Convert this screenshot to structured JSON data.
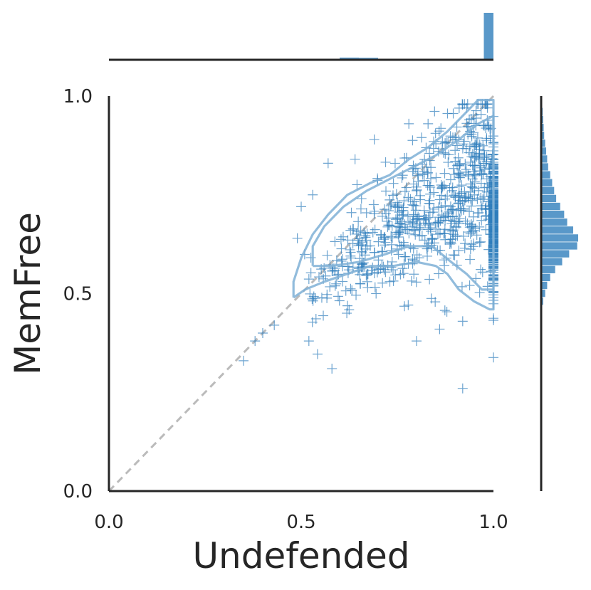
{
  "chart_data": {
    "type": "scatter",
    "title": "",
    "xlabel": "Undefended",
    "ylabel": "MemFree",
    "xlim": [
      0.0,
      1.0
    ],
    "ylim": [
      0.0,
      1.0
    ],
    "xticks": [
      "0.0",
      "0.5",
      "1.0"
    ],
    "yticks": [
      "0.0",
      "0.5",
      "1.0"
    ],
    "grid": false,
    "legend": "none",
    "marker": "+",
    "color": "#2f7ebc",
    "reference_line": {
      "from": [
        0.0,
        0.0
      ],
      "to": [
        1.0,
        1.0
      ],
      "style": "dashed",
      "color": "#bbbbbb"
    },
    "kde_contours": [
      [
        [
          0.48,
          0.49
        ],
        [
          0.51,
          0.51
        ],
        [
          0.56,
          0.53
        ],
        [
          0.62,
          0.55
        ],
        [
          0.68,
          0.57
        ],
        [
          0.74,
          0.57
        ],
        [
          0.8,
          0.58
        ],
        [
          0.85,
          0.57
        ],
        [
          0.88,
          0.55
        ],
        [
          0.91,
          0.51
        ],
        [
          0.95,
          0.48
        ],
        [
          0.99,
          0.46
        ],
        [
          1.0,
          0.46
        ],
        [
          1.0,
          0.99
        ],
        [
          0.96,
          0.99
        ],
        [
          0.93,
          0.96
        ],
        [
          0.88,
          0.91
        ],
        [
          0.83,
          0.87
        ],
        [
          0.78,
          0.84
        ],
        [
          0.73,
          0.8
        ],
        [
          0.68,
          0.78
        ],
        [
          0.62,
          0.75
        ],
        [
          0.57,
          0.7
        ],
        [
          0.53,
          0.65
        ],
        [
          0.5,
          0.59
        ],
        [
          0.48,
          0.53
        ],
        [
          0.48,
          0.49
        ]
      ],
      [
        [
          0.53,
          0.57
        ],
        [
          0.58,
          0.57
        ],
        [
          0.65,
          0.58
        ],
        [
          0.72,
          0.6
        ],
        [
          0.78,
          0.62
        ],
        [
          0.84,
          0.62
        ],
        [
          0.89,
          0.58
        ],
        [
          0.93,
          0.55
        ],
        [
          0.97,
          0.51
        ],
        [
          1.0,
          0.51
        ],
        [
          1.0,
          0.95
        ],
        [
          0.96,
          0.93
        ],
        [
          0.91,
          0.89
        ],
        [
          0.85,
          0.85
        ],
        [
          0.79,
          0.82
        ],
        [
          0.73,
          0.79
        ],
        [
          0.67,
          0.76
        ],
        [
          0.61,
          0.72
        ],
        [
          0.56,
          0.67
        ],
        [
          0.53,
          0.62
        ],
        [
          0.53,
          0.57
        ]
      ]
    ],
    "marginal_x": {
      "bins": [
        0.0,
        0.05,
        0.1,
        0.15,
        0.2,
        0.25,
        0.3,
        0.35,
        0.4,
        0.45,
        0.5,
        0.55,
        0.6,
        0.65,
        0.7,
        0.75,
        0.8,
        0.85,
        0.9,
        0.95,
        0.975,
        1.0
      ],
      "counts": [
        0,
        0,
        0,
        0,
        0,
        0,
        0,
        0,
        0,
        1,
        2,
        6,
        22,
        20,
        8,
        3,
        2,
        1,
        1,
        2,
        470
      ]
    },
    "marginal_y": {
      "bins": [
        0.47,
        0.49,
        0.51,
        0.53,
        0.55,
        0.57,
        0.59,
        0.61,
        0.63,
        0.65,
        0.67,
        0.69,
        0.71,
        0.73,
        0.75,
        0.77,
        0.79,
        0.81,
        0.83,
        0.85,
        0.87,
        0.89,
        0.91,
        0.93,
        0.95,
        0.97,
        0.99
      ],
      "counts": [
        4,
        8,
        12,
        18,
        28,
        42,
        56,
        72,
        74,
        64,
        52,
        46,
        38,
        30,
        26,
        22,
        18,
        14,
        12,
        10,
        8,
        6,
        5,
        4,
        3,
        2
      ]
    }
  }
}
